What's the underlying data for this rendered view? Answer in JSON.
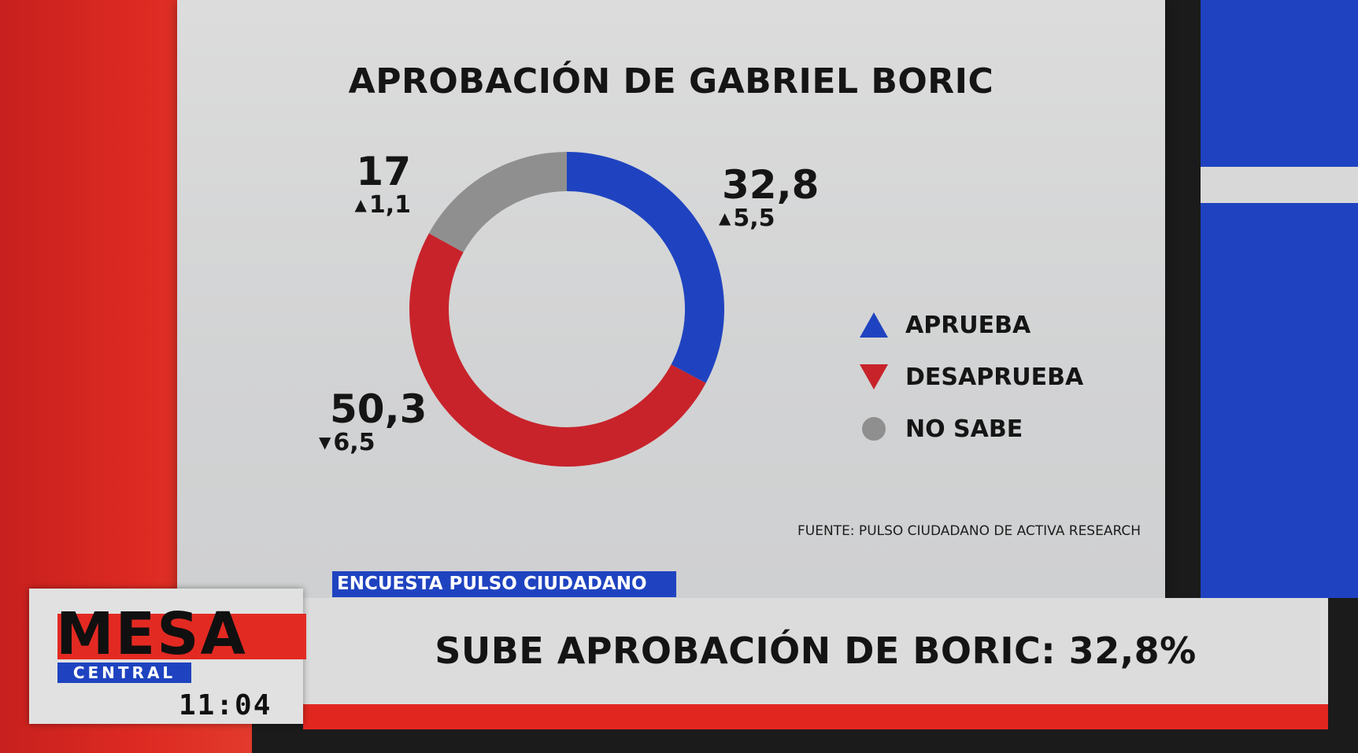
{
  "chart_data": {
    "type": "pie",
    "title": "APROBACIÓN DE GABRIEL BORIC",
    "slices": [
      {
        "label": "APRUEBA",
        "value": 32.8,
        "value_label": "32,8",
        "change": "5,5",
        "direction": "up",
        "color": "#1f43c0",
        "marker": "triangle-up"
      },
      {
        "label": "DESAPRUEBA",
        "value": 50.3,
        "value_label": "50,3",
        "change": "6,5",
        "direction": "down",
        "color": "#c8232b",
        "marker": "triangle-down"
      },
      {
        "label": "NO SABE",
        "value": 17,
        "value_label": "17",
        "change": "1,1",
        "direction": "up",
        "color": "#8f8f8f",
        "marker": "circle"
      }
    ],
    "legend_position": "right",
    "source": "FUENTE: PULSO CIUDADANO DE ACTIVA RESEARCH"
  },
  "tag": "ENCUESTA PULSO CIUDADANO",
  "headline": "SUBE APROBACIÓN DE BORIC: 32,8%",
  "logo": {
    "top": "MESA",
    "bottom": "CENTRAL",
    "time": "11:04"
  },
  "arrows": {
    "up": "▲",
    "down": "▼"
  }
}
